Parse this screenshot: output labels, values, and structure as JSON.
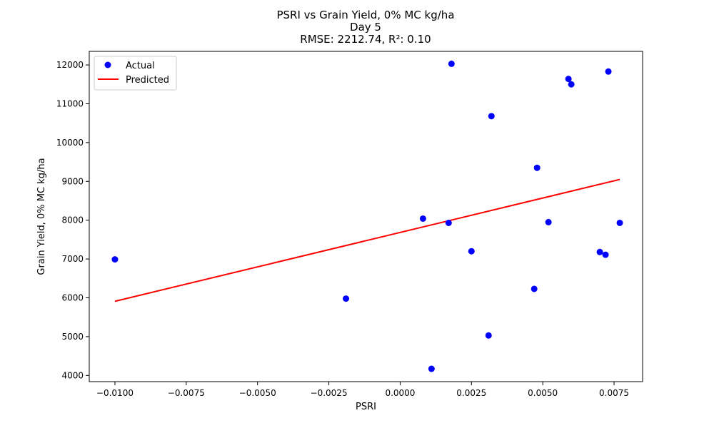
{
  "chart_data": {
    "type": "scatter",
    "title": "PSRI vs Grain Yield, 0% MC kg/ha",
    "subtitle": "Day 5",
    "metrics": "RMSE: 2212.74, R²: 0.10",
    "xlabel": "PSRI",
    "ylabel": "Grain Yield, 0% MC kg/ha",
    "xlim": [
      -0.0109,
      0.0085
    ],
    "ylim": [
      3840,
      12350
    ],
    "x_ticks": [
      -0.01,
      -0.0075,
      -0.005,
      -0.0025,
      0.0,
      0.0025,
      0.005,
      0.0075
    ],
    "x_tick_labels": [
      "−0.0100",
      "−0.0075",
      "−0.0050",
      "−0.0025",
      "0.0000",
      "0.0025",
      "0.0050",
      "0.0075"
    ],
    "y_ticks": [
      4000,
      5000,
      6000,
      7000,
      8000,
      9000,
      10000,
      11000,
      12000
    ],
    "y_tick_labels": [
      "4000",
      "5000",
      "6000",
      "7000",
      "8000",
      "9000",
      "10000",
      "11000",
      "12000"
    ],
    "grid": false,
    "legend": {
      "position": "top-left",
      "entries": [
        "Actual",
        "Predicted"
      ]
    },
    "series": [
      {
        "name": "Actual",
        "kind": "scatter",
        "color": "#0000ff",
        "x": [
          -0.01,
          -0.0019,
          0.0008,
          0.0011,
          0.0017,
          0.0018,
          0.0025,
          0.0031,
          0.0032,
          0.0047,
          0.0048,
          0.0052,
          0.0059,
          0.006,
          0.007,
          0.0072,
          0.0073,
          0.0077
        ],
        "y": [
          6990,
          5980,
          8040,
          4170,
          7930,
          12030,
          7200,
          5030,
          10680,
          6230,
          9350,
          7950,
          11640,
          11500,
          7180,
          7110,
          11830,
          7930
        ]
      },
      {
        "name": "Predicted",
        "kind": "line",
        "color": "#ff0000",
        "x": [
          -0.01,
          0.0077
        ],
        "y": [
          5910,
          9050
        ]
      }
    ]
  }
}
